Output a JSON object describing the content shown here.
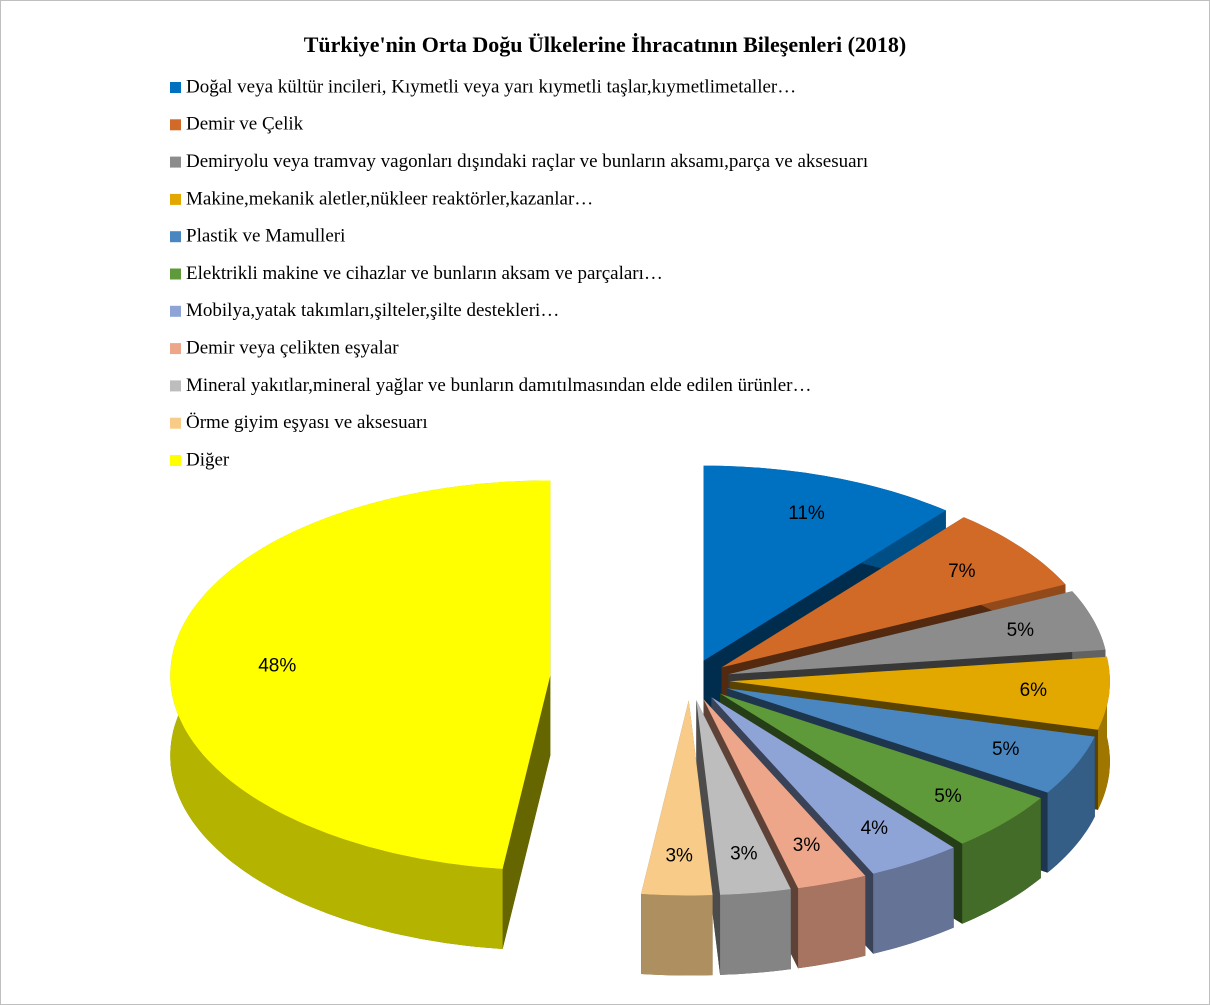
{
  "chart_data": {
    "type": "pie",
    "title": "Türkiye'nin Orta Doğu Ülkelerine İhracatının Bileşenleri (2018)",
    "categories": [
      "Doğal veya kültür incileri, Kıymetli veya yarı kıymetli taşlar,kıymetlimetaller…",
      "Demir ve Çelik",
      "Demiryolu veya tramvay vagonları dışındaki raçlar ve bunların aksamı,parça ve aksesuarı",
      "Makine,mekanik aletler,nükleer reaktörler,kazanlar…",
      "Plastik ve Mamulleri",
      "Elektrikli makine ve cihazlar ve bunların aksam ve parçaları…",
      "Mobilya,yatak takımları,şilteler,şilte destekleri…",
      "Demir veya çelikten eşyalar",
      "Mineral yakıtlar,mineral yağlar ve bunların damıtılmasından elde edilen ürünler…",
      "Örme giyim eşyası ve aksesuarı",
      "Diğer"
    ],
    "values": [
      11,
      7,
      5,
      6,
      5,
      5,
      4,
      3,
      3,
      3,
      48
    ],
    "value_labels": [
      "11%",
      "7%",
      "5%",
      "6%",
      "5%",
      "5%",
      "4%",
      "3%",
      "3%",
      "3%",
      "48%"
    ],
    "colors": [
      "#0070c0",
      "#d06a26",
      "#8c8c8c",
      "#e2a800",
      "#4a86c0",
      "#5f9a3a",
      "#8fa4d6",
      "#eea68a",
      "#bdbdbd",
      "#f8cc88",
      "#ffff00"
    ],
    "legend": "top"
  }
}
